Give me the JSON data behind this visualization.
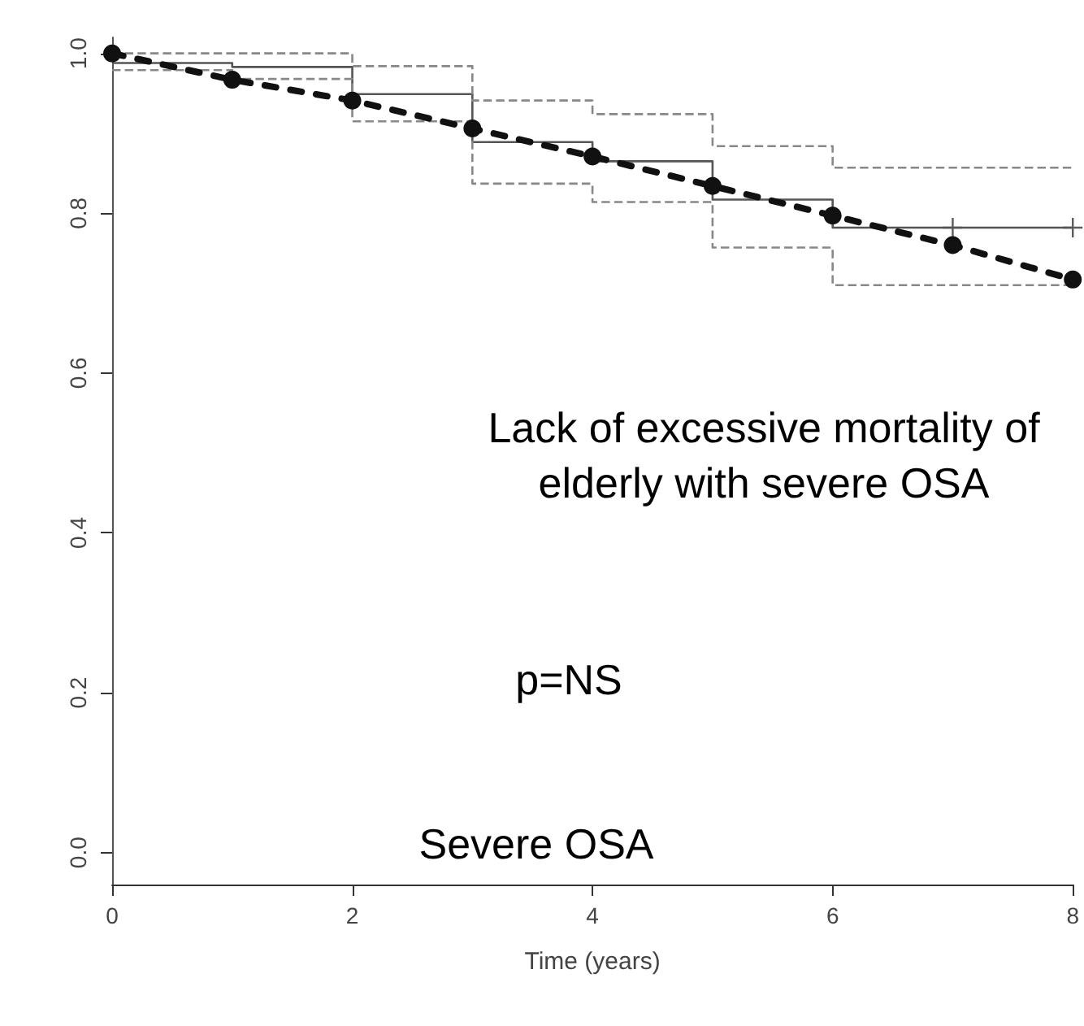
{
  "chart_data": {
    "type": "step",
    "xlabel": "Time (years)",
    "xlim": [
      0,
      8
    ],
    "xticks": [
      0,
      2,
      4,
      6,
      8
    ],
    "ylim": [
      -0.04,
      1.02
    ],
    "yticks": [
      {
        "value": 0,
        "label": "0.0"
      },
      0.2,
      0.4,
      0.6,
      0.8,
      {
        "value": 1,
        "label": "1.0"
      }
    ],
    "grid": false,
    "annotations": [
      "Lack of excessive mortality of\nelderly with severe OSA",
      "p=NS",
      "Severe OSA"
    ],
    "series": [
      {
        "color": "#555555",
        "line_style": "solid",
        "marker": "none",
        "x": [
          0,
          1,
          2,
          3,
          4,
          5,
          6,
          8
        ],
        "values": [
          0.988,
          0.983,
          0.949,
          0.889,
          0.865,
          0.817,
          0.782,
          0.782
        ]
      },
      {
        "color": "#888888",
        "line_style": "dashed",
        "marker": "none",
        "x": [
          0,
          2,
          3,
          4,
          5,
          6,
          8
        ],
        "values": [
          1.0,
          0.984,
          0.941,
          0.924,
          0.884,
          0.857,
          0.857
        ]
      },
      {
        "color": "#888888",
        "line_style": "dashed",
        "marker": "none",
        "x": [
          0,
          1,
          2,
          3,
          4,
          5,
          6,
          8
        ],
        "values": [
          0.979,
          0.968,
          0.915,
          0.837,
          0.814,
          0.757,
          0.71,
          0.71
        ]
      },
      {
        "type": "line",
        "color": "#111111",
        "line_style": "dashed",
        "marker": "circle",
        "x": [
          0,
          1,
          2,
          3,
          4,
          5,
          6,
          7,
          8
        ],
        "values": [
          1.0,
          0.967,
          0.941,
          0.906,
          0.871,
          0.834,
          0.797,
          0.76,
          0.717
        ]
      },
      {
        "type": "scatter",
        "color": "#333333",
        "marker": "cross",
        "x": [
          7,
          8
        ],
        "values": [
          0.782,
          0.782
        ]
      }
    ]
  }
}
